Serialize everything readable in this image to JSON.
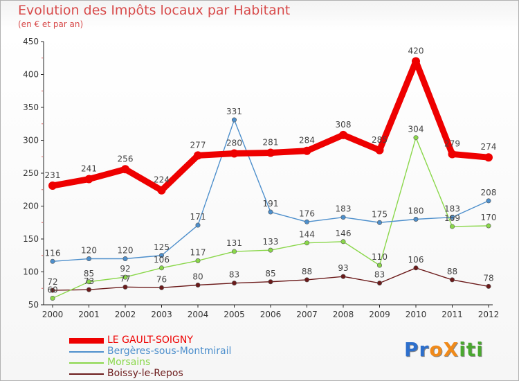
{
  "chart_data": {
    "type": "line",
    "title": "Evolution des Impôts locaux par Habitant",
    "subtitle": "(en € et par an)",
    "xlabel": "",
    "ylabel": "",
    "ylim": [
      50,
      450
    ],
    "yticks": [
      50,
      100,
      150,
      200,
      250,
      300,
      350,
      400,
      450
    ],
    "categories": [
      "2000",
      "2001",
      "2002",
      "2003",
      "2004",
      "2005",
      "2006",
      "2007",
      "2008",
      "2009",
      "2010",
      "2011",
      "2012"
    ],
    "series": [
      {
        "name": "LE GAULT-SOIGNY",
        "color": "#ee0000",
        "values": [
          231,
          241,
          256,
          224,
          277,
          280,
          281,
          284,
          308,
          285,
          420,
          279,
          274
        ]
      },
      {
        "name": "Bergères-sous-Montmirail",
        "color": "#4d8fcc",
        "values": [
          116,
          120,
          120,
          125,
          171,
          331,
          191,
          176,
          183,
          175,
          180,
          183,
          208
        ]
      },
      {
        "name": "Morsains",
        "color": "#8ad74a",
        "values": [
          60,
          85,
          92,
          106,
          117,
          131,
          133,
          144,
          146,
          110,
          304,
          169,
          170
        ]
      },
      {
        "name": "Boissy-le-Repos",
        "color": "#6b1a1a",
        "values": [
          72,
          73,
          77,
          76,
          80,
          83,
          85,
          88,
          93,
          83,
          106,
          88,
          78
        ]
      }
    ],
    "grid": false,
    "legend_position": "bottom-left"
  },
  "brand": {
    "text": "ProXiti",
    "letters": [
      "P",
      "r",
      "o",
      "X",
      "i",
      "t",
      "i"
    ],
    "colors": [
      "#2d6fcc",
      "#2d6fcc",
      "#f08a1a",
      "#f08a1a",
      "#4aa82f",
      "#4aa82f",
      "#4aa82f"
    ]
  }
}
